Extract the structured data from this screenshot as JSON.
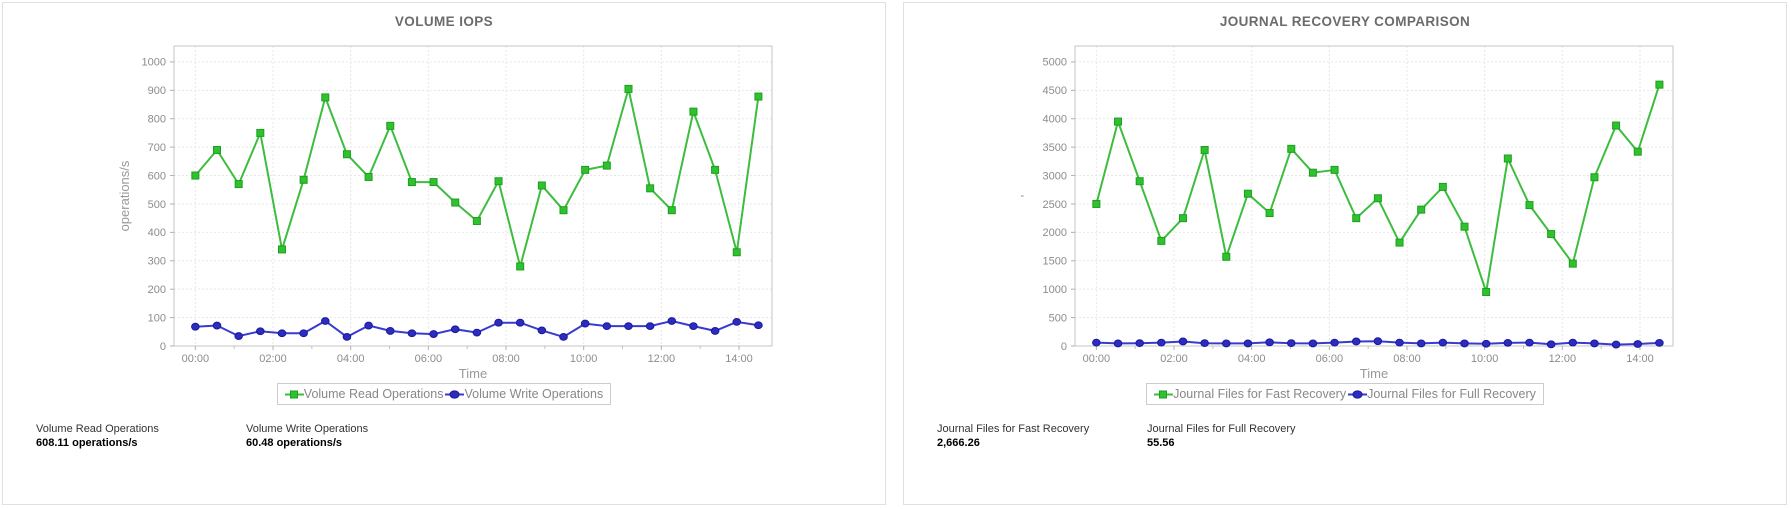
{
  "panels": [
    {
      "title": "VOLUME IOPS",
      "legend": [
        {
          "label": "Volume Read Operations"
        },
        {
          "label": "Volume Write Operations"
        }
      ],
      "stats": [
        {
          "label": "Volume Read Operations",
          "value": "608.11 operations/s"
        },
        {
          "label": "Volume Write Operations",
          "value": "60.48 operations/s"
        }
      ]
    },
    {
      "title": "JOURNAL RECOVERY COMPARISON",
      "legend": [
        {
          "label": "Journal Files for Fast Recovery"
        },
        {
          "label": "Journal Files for Full Recovery"
        }
      ],
      "stats": [
        {
          "label": "Journal Files for Fast Recovery",
          "value": "2,666.26"
        },
        {
          "label": "Journal Files for Full Recovery",
          "value": "55.56"
        }
      ]
    }
  ],
  "colors": {
    "green_line": "#3dbd3d",
    "green_fill": "#2fc12f",
    "green_edge": "#1da01d",
    "blue_line": "#3a3ad0",
    "blue_fill": "#2c2cc0",
    "blue_edge": "#1a1a99",
    "grid": "#e7e7e7",
    "plot_border": "#c6c6c6",
    "tick_text": "#8c8c8c",
    "axis_title": "#999999"
  },
  "chart_data": [
    {
      "type": "line",
      "title": "VOLUME IOPS",
      "xlabel": "Time",
      "ylabel": "operations/s",
      "grid": true,
      "legend_position": "bottom",
      "x_start": 0,
      "x_end": 14.5,
      "xlim": [
        -0.55,
        14.85
      ],
      "ylim": [
        0,
        1056
      ],
      "yticks": [
        0,
        100,
        200,
        300,
        400,
        500,
        600,
        700,
        800,
        900,
        1000
      ],
      "xticks": [
        {
          "hour": 0,
          "label": "00:00"
        },
        {
          "hour": 2,
          "label": "02:00"
        },
        {
          "hour": 4,
          "label": "04:00"
        },
        {
          "hour": 6,
          "label": "06:00"
        },
        {
          "hour": 8,
          "label": "08:00"
        },
        {
          "hour": 10,
          "label": "10:00"
        },
        {
          "hour": 12,
          "label": "12:00"
        },
        {
          "hour": 14,
          "label": "14:00"
        }
      ],
      "minor_ticks": [
        1,
        3,
        5,
        7,
        9,
        11,
        13
      ],
      "series": [
        {
          "name": "Volume Read Operations",
          "marker": "square",
          "palette": "green",
          "values": [
            600,
            690,
            570,
            750,
            340,
            585,
            875,
            675,
            595,
            775,
            577,
            577,
            505,
            440,
            580,
            280,
            565,
            478,
            620,
            635,
            905,
            555,
            478,
            825,
            620,
            330,
            878
          ]
        },
        {
          "name": "Volume Write Operations",
          "marker": "circle",
          "palette": "blue",
          "values": [
            68,
            72,
            35,
            52,
            45,
            45,
            88,
            32,
            72,
            53,
            45,
            42,
            59,
            47,
            82,
            82,
            55,
            32,
            79,
            70,
            70,
            70,
            88,
            70,
            53,
            85,
            73
          ]
        }
      ]
    },
    {
      "type": "line",
      "title": "JOURNAL RECOVERY COMPARISON",
      "xlabel": "Time",
      "ylabel": "'",
      "grid": true,
      "legend_position": "bottom",
      "x_start": 0,
      "x_end": 14.5,
      "xlim": [
        -0.55,
        14.85
      ],
      "ylim": [
        0,
        5280
      ],
      "yticks": [
        0,
        500,
        1000,
        1500,
        2000,
        2500,
        3000,
        3500,
        4000,
        4500,
        5000
      ],
      "xticks": [
        {
          "hour": 0,
          "label": "00:00"
        },
        {
          "hour": 2,
          "label": "02:00"
        },
        {
          "hour": 4,
          "label": "04:00"
        },
        {
          "hour": 6,
          "label": "06:00"
        },
        {
          "hour": 8,
          "label": "08:00"
        },
        {
          "hour": 10,
          "label": "10:00"
        },
        {
          "hour": 12,
          "label": "12:00"
        },
        {
          "hour": 14,
          "label": "14:00"
        }
      ],
      "minor_ticks": [
        1,
        3,
        5,
        7,
        9,
        11,
        13
      ],
      "series": [
        {
          "name": "Journal Files for Fast Recovery",
          "marker": "square",
          "palette": "green",
          "values": [
            2500,
            3950,
            2900,
            1850,
            2250,
            3450,
            1570,
            2680,
            2340,
            3470,
            3050,
            3100,
            2250,
            2600,
            1820,
            2400,
            2800,
            2100,
            950,
            3300,
            2480,
            1970,
            1450,
            2970,
            3880,
            3420,
            4600
          ]
        },
        {
          "name": "Journal Files for Full Recovery",
          "marker": "circle",
          "palette": "blue",
          "values": [
            60,
            45,
            50,
            60,
            80,
            50,
            45,
            45,
            65,
            50,
            45,
            60,
            80,
            85,
            60,
            45,
            60,
            45,
            40,
            55,
            60,
            30,
            60,
            45,
            25,
            35,
            55
          ]
        }
      ]
    }
  ]
}
